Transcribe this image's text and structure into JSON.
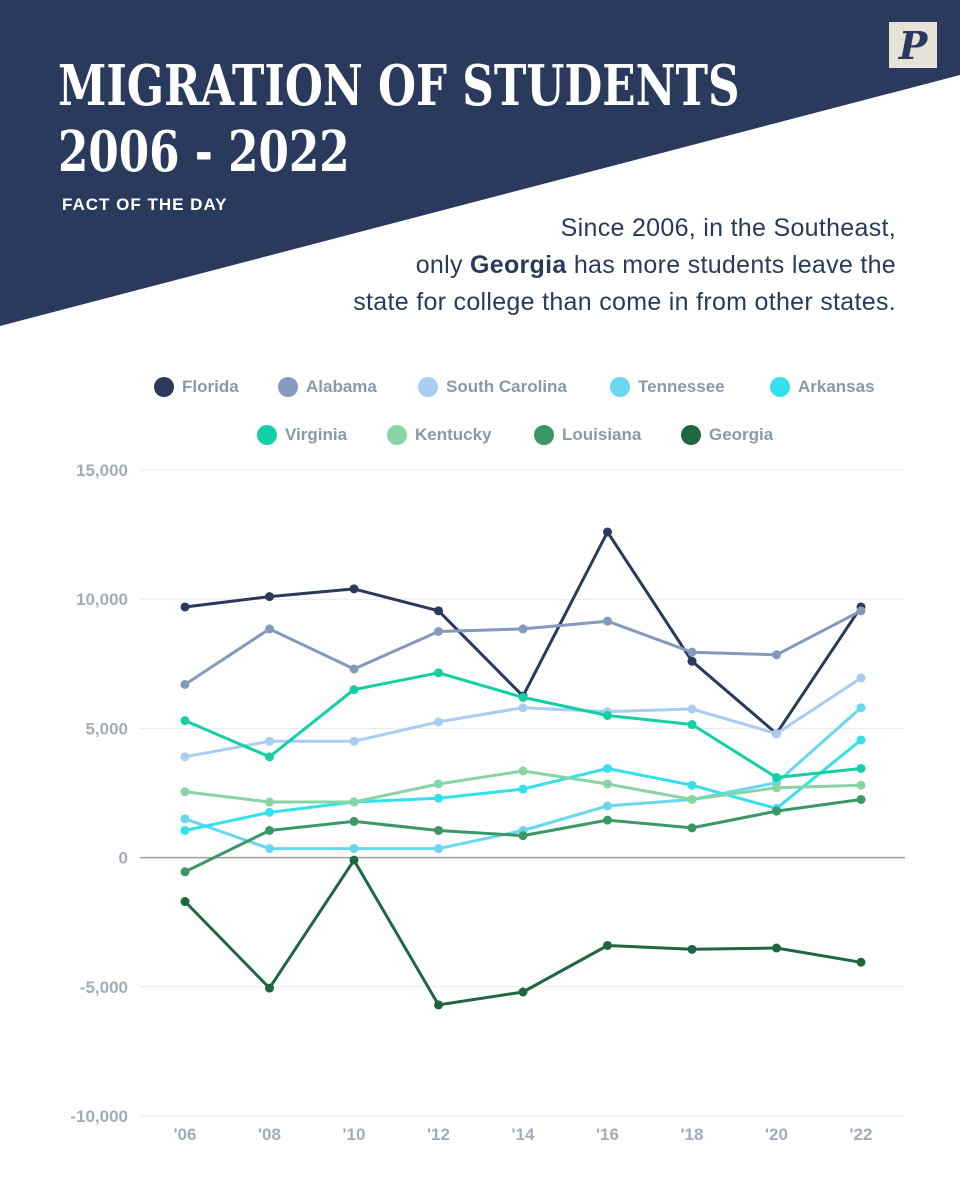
{
  "header": {
    "title_line1": "MIGRATION OF STUDENTS",
    "title_line2": "2006 - 2022",
    "subtitle": "FACT OF THE DAY",
    "logo_letter": "P",
    "fact_line1": "Since 2006, in the Southeast,",
    "fact_line2_pre": "only ",
    "fact_line2_bold": "Georgia",
    "fact_line2_post": " has more students leave the",
    "fact_line3": "state for college than come in from other states."
  },
  "colors": {
    "banner": "#2a3a5c",
    "background": "#ffffff",
    "gridline": "#e8e8e8",
    "zero_line": "#9aa0a6",
    "tick_text": "#a3acb8"
  },
  "chart_data": {
    "type": "line",
    "categories": [
      "'06",
      "'08",
      "'10",
      "'12",
      "'14",
      "'16",
      "'18",
      "'20",
      "'22"
    ],
    "ylim": [
      -10000,
      15000
    ],
    "yticks": [
      "15,000",
      "10,000",
      "5,000",
      "0",
      "-5,000",
      "-10,000"
    ],
    "ytick_values": [
      15000,
      10000,
      5000,
      0,
      -5000,
      -10000
    ],
    "legend_position": "top",
    "grid": true,
    "series": [
      {
        "name": "Florida",
        "color": "#2a3a5c",
        "values": [
          9700,
          10100,
          10400,
          9550,
          6250,
          12600,
          7600,
          4800,
          9700
        ]
      },
      {
        "name": "Alabama",
        "color": "#8499bb",
        "values": [
          6700,
          8850,
          7300,
          8750,
          8850,
          9150,
          7950,
          7850,
          9550
        ]
      },
      {
        "name": "South Carolina",
        "color": "#a9cdf1",
        "values": [
          3900,
          4500,
          4500,
          5250,
          5800,
          5650,
          5750,
          4800,
          6950
        ]
      },
      {
        "name": "Tennessee",
        "color": "#69d7f2",
        "values": [
          1500,
          350,
          350,
          350,
          1050,
          2000,
          2250,
          2900,
          5800
        ]
      },
      {
        "name": "Arkansas",
        "color": "#34e0ec",
        "values": [
          1050,
          1750,
          2150,
          2300,
          2650,
          3450,
          2800,
          1900,
          4550
        ]
      },
      {
        "name": "Virginia",
        "color": "#13cfa5",
        "values": [
          5300,
          3900,
          6500,
          7150,
          6200,
          5500,
          5150,
          3100,
          3450
        ]
      },
      {
        "name": "Kentucky",
        "color": "#88d4a4",
        "values": [
          2550,
          2150,
          2150,
          2850,
          3350,
          2850,
          2250,
          2700,
          2800
        ]
      },
      {
        "name": "Louisiana",
        "color": "#3b9866",
        "values": [
          -550,
          1050,
          1400,
          1050,
          850,
          1450,
          1150,
          1800,
          2250
        ]
      },
      {
        "name": "Georgia",
        "color": "#1f6641",
        "values": [
          -1700,
          -5050,
          -100,
          -5700,
          -5200,
          -3400,
          -3550,
          -3500,
          -4050
        ]
      }
    ]
  }
}
